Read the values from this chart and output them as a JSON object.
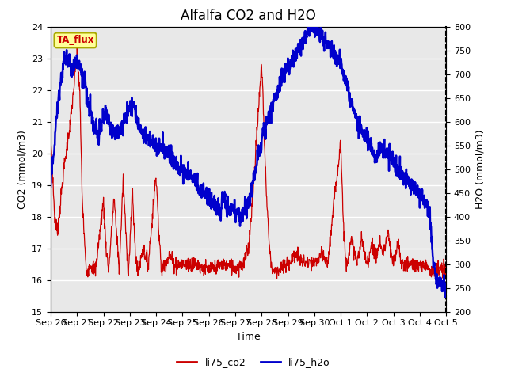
{
  "title": "Alfalfa CO2 and H2O",
  "xlabel": "Time",
  "ylabel_left": "CO2 (mmol/m3)",
  "ylabel_right": "H2O (mmol/m3)",
  "ylim_left": [
    15.0,
    24.0
  ],
  "ylim_right": [
    200,
    800
  ],
  "yticks_left": [
    15.0,
    16.0,
    17.0,
    18.0,
    19.0,
    20.0,
    21.0,
    22.0,
    23.0,
    24.0
  ],
  "yticks_right": [
    200,
    250,
    300,
    350,
    400,
    450,
    500,
    550,
    600,
    650,
    700,
    750,
    800
  ],
  "xtick_labels": [
    "Sep 20",
    "Sep 21",
    "Sep 22",
    "Sep 23",
    "Sep 24",
    "Sep 25",
    "Sep 26",
    "Sep 27",
    "Sep 28",
    "Sep 29",
    "Sep 30",
    "Oct 1",
    "Oct 2",
    "Oct 3",
    "Oct 4",
    "Oct 5"
  ],
  "color_co2": "#cc0000",
  "color_h2o": "#0000cc",
  "legend_label_co2": "li75_co2",
  "legend_label_h2o": "li75_h2o",
  "tag_label": "TA_flux",
  "tag_color": "#ffff99",
  "tag_border": "#aaaa00",
  "background_color": "#e8e8e8",
  "grid_color": "#ffffff",
  "title_fontsize": 12,
  "axis_fontsize": 9,
  "tick_fontsize": 8,
  "legend_fontsize": 9
}
